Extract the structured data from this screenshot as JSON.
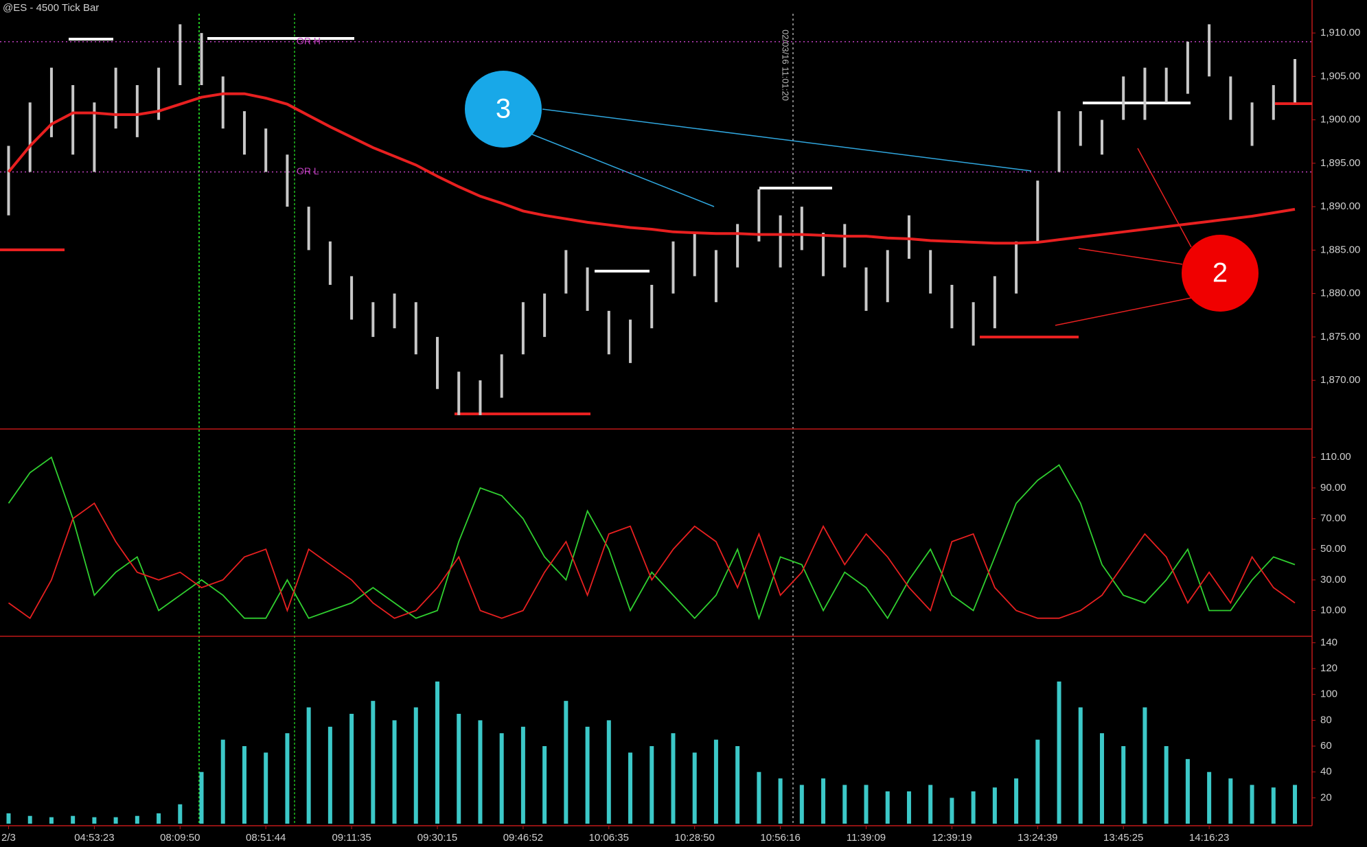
{
  "chart_data": [
    {
      "type": "range_bar",
      "title": "@ES - 4500 Tick Bar",
      "color": "#c8c8c8",
      "x": [
        0,
        1,
        2,
        3,
        4,
        5,
        6,
        7,
        8,
        9,
        10,
        11,
        12,
        13,
        14,
        15,
        16,
        17,
        18,
        19,
        20,
        21,
        22,
        23,
        24,
        25,
        26,
        27,
        28,
        29,
        30,
        31,
        32,
        33,
        34,
        35,
        36,
        37,
        38,
        39,
        40,
        41,
        42,
        43,
        44,
        45,
        46,
        47,
        48,
        49,
        50,
        51,
        52,
        53,
        54,
        55,
        56,
        57,
        58,
        59,
        60
      ],
      "high": [
        1897,
        1902,
        1906,
        1904,
        1902,
        1906,
        1904,
        1906,
        1911,
        1910,
        1905,
        1901,
        1899,
        1896,
        1890,
        1886,
        1882,
        1879,
        1880,
        1879,
        1875,
        1871,
        1870,
        1873,
        1879,
        1880,
        1885,
        1883,
        1878,
        1877,
        1881,
        1886,
        1887,
        1885,
        1888,
        1892,
        1889,
        1890,
        1887,
        1888,
        1883,
        1885,
        1889,
        1885,
        1881,
        1879,
        1882,
        1886,
        1893,
        1901,
        1901,
        1900,
        1905,
        1906,
        1906,
        1909,
        1911,
        1905,
        1902,
        1904,
        1907
      ],
      "low": [
        1889,
        1894,
        1898,
        1896,
        1894,
        1899,
        1898,
        1900,
        1904,
        1904,
        1899,
        1896,
        1894,
        1890,
        1885,
        1881,
        1877,
        1875,
        1876,
        1873,
        1869,
        1866,
        1866,
        1868,
        1873,
        1875,
        1880,
        1878,
        1873,
        1872,
        1876,
        1880,
        1882,
        1879,
        1883,
        1886,
        1883,
        1885,
        1882,
        1883,
        1878,
        1879,
        1884,
        1880,
        1876,
        1874,
        1876,
        1880,
        1886,
        1894,
        1897,
        1896,
        1900,
        1900,
        1902,
        1903,
        1905,
        1900,
        1897,
        1900,
        1902
      ],
      "lines": [
        {
          "color": "#e82020",
          "values": [
            1894,
            1897,
            1899.5,
            1900.8,
            1900.8,
            1900.6,
            1900.6,
            1901,
            1901.8,
            1902.6,
            1903,
            1903,
            1902.5,
            1901.8,
            1900.5,
            1899.2,
            1898,
            1896.8,
            1895.8,
            1894.8,
            1893.5,
            1892.3,
            1891.2,
            1890.4,
            1889.5,
            1889,
            1888.6,
            1888.2,
            1887.9,
            1887.6,
            1887.4,
            1887.1,
            1887,
            1886.9,
            1886.9,
            1886.8,
            1886.8,
            1886.8,
            1886.7,
            1886.6,
            1886.6,
            1886.4,
            1886.3,
            1886.1,
            1886,
            1885.9,
            1885.8,
            1885.8,
            1885.9,
            1886.2,
            1886.5,
            1886.8,
            1887.1,
            1887.4,
            1887.7,
            1888,
            1888.3,
            1888.6,
            1888.9,
            1889.3,
            1889.7
          ]
        }
      ],
      "reference_lines": [
        {
          "label": "OR H",
          "value": 1909,
          "color": "#c040c0"
        },
        {
          "label": "OR L",
          "value": 1894,
          "color": "#c040c0"
        }
      ],
      "annotations": [
        "3",
        "2",
        "02/03/16 11:01:20"
      ],
      "xlim": [
        -0.4,
        60.8
      ],
      "ylim": [
        1864.4,
        1913.8
      ],
      "yticks": [
        {
          "value": 1870,
          "label": "1,870.00"
        },
        {
          "value": 1875,
          "label": "1,875.00"
        },
        {
          "value": 1880,
          "label": "1,880.00"
        },
        {
          "value": 1885,
          "label": "1,885.00"
        },
        {
          "value": 1890,
          "label": "1,890.00"
        },
        {
          "value": 1895,
          "label": "1,895.00"
        },
        {
          "value": 1900,
          "label": "1,900.00"
        },
        {
          "value": 1905,
          "label": "1,905.00"
        },
        {
          "value": 1910,
          "label": "1,910.00"
        }
      ]
    },
    {
      "type": "line",
      "x": [
        0,
        1,
        2,
        3,
        4,
        5,
        6,
        7,
        8,
        9,
        10,
        11,
        12,
        13,
        14,
        15,
        16,
        17,
        18,
        19,
        20,
        21,
        22,
        23,
        24,
        25,
        26,
        27,
        28,
        29,
        30,
        31,
        32,
        33,
        34,
        35,
        36,
        37,
        38,
        39,
        40,
        41,
        42,
        43,
        44,
        45,
        46,
        47,
        48,
        49,
        50,
        51,
        52,
        53,
        54,
        55,
        56,
        57,
        58,
        59,
        60
      ],
      "series": [
        {
          "color": "#30d030",
          "values": [
            80,
            100,
            110,
            70,
            20,
            35,
            45,
            10,
            20,
            30,
            20,
            5,
            5,
            30,
            5,
            10,
            15,
            25,
            15,
            5,
            10,
            55,
            90,
            85,
            70,
            45,
            30,
            75,
            50,
            10,
            35,
            20,
            5,
            20,
            50,
            5,
            45,
            40,
            10,
            35,
            25,
            5,
            30,
            50,
            20,
            10,
            45,
            80,
            95,
            105,
            80,
            40,
            20,
            15,
            30,
            50,
            10,
            10,
            30,
            45,
            40
          ]
        },
        {
          "color": "#e82020",
          "values": [
            15,
            5,
            30,
            70,
            80,
            55,
            35,
            30,
            35,
            25,
            30,
            45,
            50,
            10,
            50,
            40,
            30,
            15,
            5,
            10,
            25,
            45,
            10,
            5,
            10,
            35,
            55,
            20,
            60,
            65,
            30,
            50,
            65,
            55,
            25,
            60,
            20,
            35,
            65,
            40,
            60,
            45,
            25,
            10,
            55,
            60,
            25,
            10,
            5,
            5,
            10,
            20,
            40,
            60,
            45,
            15,
            35,
            15,
            45,
            25,
            15
          ]
        }
      ],
      "xlim": [
        -0.4,
        60.8
      ],
      "ylim": [
        -1.4,
        124
      ],
      "yticks": [
        {
          "value": 10,
          "label": "10.00"
        },
        {
          "value": 30,
          "label": "30.00"
        },
        {
          "value": 50,
          "label": "50.00"
        },
        {
          "value": 70,
          "label": "70.00"
        },
        {
          "value": 90,
          "label": "90.00"
        },
        {
          "value": 110,
          "label": "110.00"
        }
      ]
    },
    {
      "type": "bar",
      "color": "#3cc8c8",
      "x": [
        0,
        1,
        2,
        3,
        4,
        5,
        6,
        7,
        8,
        9,
        10,
        11,
        12,
        13,
        14,
        15,
        16,
        17,
        18,
        19,
        20,
        21,
        22,
        23,
        24,
        25,
        26,
        27,
        28,
        29,
        30,
        31,
        32,
        33,
        34,
        35,
        36,
        37,
        38,
        39,
        40,
        41,
        42,
        43,
        44,
        45,
        46,
        47,
        48,
        49,
        50,
        51,
        52,
        53,
        54,
        55,
        56,
        57,
        58,
        59,
        60
      ],
      "values": [
        8,
        6,
        5,
        6,
        5,
        5,
        6,
        8,
        15,
        40,
        65,
        60,
        55,
        70,
        90,
        75,
        85,
        95,
        80,
        90,
        110,
        85,
        80,
        70,
        75,
        60,
        95,
        75,
        80,
        55,
        60,
        70,
        55,
        65,
        60,
        40,
        35,
        30,
        35,
        30,
        30,
        25,
        25,
        30,
        20,
        25,
        28,
        35,
        65,
        110,
        90,
        70,
        60,
        90,
        60,
        50,
        40,
        35,
        30,
        28,
        30
      ],
      "xlim": [
        -0.4,
        60.8
      ],
      "ylim": [
        0,
        145
      ],
      "yticks": [
        20,
        40,
        60,
        80,
        100,
        120,
        140
      ],
      "xticks": [
        {
          "value": 0,
          "label": "2/3"
        },
        {
          "value": 4,
          "label": "04:53:23"
        },
        {
          "value": 8,
          "label": "08:09:50"
        },
        {
          "value": 12,
          "label": "08:51:44"
        },
        {
          "value": 16,
          "label": "09:11:35"
        },
        {
          "value": 20,
          "label": "09:30:15"
        },
        {
          "value": 24,
          "label": "09:46:52"
        },
        {
          "value": 28,
          "label": "10:06:35"
        },
        {
          "value": 32,
          "label": "10:28:50"
        },
        {
          "value": 36,
          "label": "10:56:16"
        },
        {
          "value": 40,
          "label": "11:39:09"
        },
        {
          "value": 44,
          "label": "12:39:19"
        },
        {
          "value": 48,
          "label": "13:24:39"
        },
        {
          "value": 52,
          "label": "13:45:25"
        },
        {
          "value": 56,
          "label": "14:16:23"
        }
      ]
    }
  ]
}
